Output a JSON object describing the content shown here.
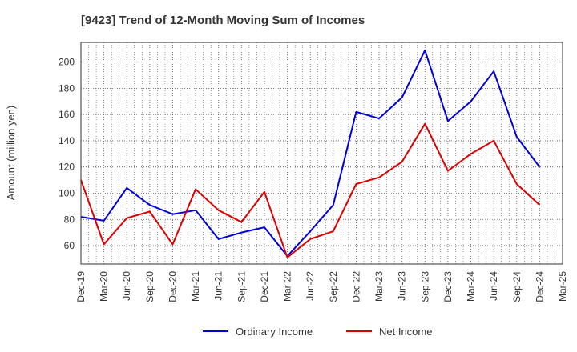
{
  "chart_data": {
    "type": "line",
    "title": "[9423]  Trend of 12-Month Moving Sum of Incomes",
    "xlabel": "",
    "ylabel": "Amount (million yen)",
    "ylim": [
      46,
      215
    ],
    "yticks": [
      60,
      80,
      100,
      120,
      140,
      160,
      180,
      200
    ],
    "grid": true,
    "legend_position": "bottom-center",
    "categories": [
      "Dec-19",
      "Mar-20",
      "Jun-20",
      "Sep-20",
      "Dec-20",
      "Mar-21",
      "Jun-21",
      "Sep-21",
      "Dec-21",
      "Mar-22",
      "Jun-22",
      "Sep-22",
      "Dec-22",
      "Mar-23",
      "Jun-23",
      "Sep-23",
      "Dec-23",
      "Mar-24",
      "Jun-24",
      "Sep-24",
      "Dec-24",
      "Mar-25"
    ],
    "series": [
      {
        "name": "Ordinary Income",
        "color": "#0000dd",
        "values": [
          82,
          79,
          104,
          91,
          84,
          87,
          65,
          70,
          74,
          52,
          71,
          91,
          162,
          157,
          173,
          209,
          155,
          170,
          193,
          143,
          120,
          null
        ]
      },
      {
        "name": "Net Income",
        "color": "#dd0000",
        "values": [
          110,
          61,
          81,
          86,
          61,
          103,
          87,
          78,
          101,
          51,
          65,
          71,
          107,
          112,
          124,
          153,
          117,
          130,
          140,
          107,
          91,
          null
        ]
      }
    ]
  }
}
